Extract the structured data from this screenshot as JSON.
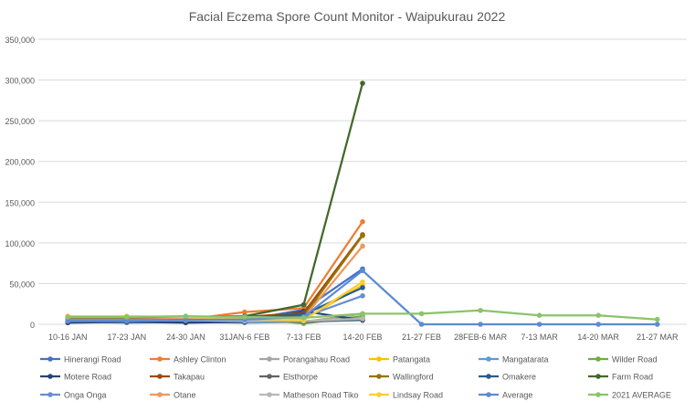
{
  "chart_data": {
    "type": "line",
    "title": "Facial Eczema Spore Count Monitor - Waipukurau 2022",
    "xlabel": "",
    "ylabel": "",
    "categories": [
      "10-16 JAN",
      "17-23 JAN",
      "24-30 JAN",
      "31JAN-6 FEB",
      "7-13 FEB",
      "14-20 FEB",
      "21-27 FEB",
      "28FEB-6 MAR",
      "7-13 MAR",
      "14-20 MAR",
      "21-27 MAR"
    ],
    "ylim": [
      0,
      350000
    ],
    "yticks": [
      0,
      50000,
      100000,
      150000,
      200000,
      250000,
      300000,
      350000
    ],
    "ytick_labels": [
      "0",
      "50,000",
      "100,000",
      "150,000",
      "200,000",
      "250,000",
      "300,000",
      "350,000"
    ],
    "grid": true,
    "legend_position": "bottom",
    "series": [
      {
        "name": "Hinerangi Road",
        "color": "#4472C4",
        "values": [
          4000,
          3000,
          3000,
          5000,
          18000,
          68000,
          null,
          null,
          null,
          null,
          null
        ]
      },
      {
        "name": "Ashley Clinton",
        "color": "#ED7D31",
        "values": [
          5000,
          5000,
          6000,
          15000,
          20000,
          126000,
          null,
          null,
          null,
          null,
          null
        ]
      },
      {
        "name": "Porangahau Road",
        "color": "#A5A5A5",
        "values": [
          3000,
          4000,
          4000,
          3000,
          3000,
          13000,
          null,
          null,
          null,
          null,
          null
        ]
      },
      {
        "name": "Patangata",
        "color": "#FFC000",
        "values": [
          6000,
          6000,
          5000,
          4000,
          6000,
          48000,
          null,
          null,
          null,
          null,
          null
        ]
      },
      {
        "name": "Mangatarata",
        "color": "#5B9BD5",
        "values": [
          3000,
          2000,
          3000,
          2000,
          3000,
          5000,
          null,
          null,
          null,
          null,
          null
        ]
      },
      {
        "name": "Wilder Road",
        "color": "#70AD47",
        "values": [
          7000,
          7000,
          9000,
          8000,
          1000,
          10000,
          null,
          null,
          null,
          null,
          null
        ]
      },
      {
        "name": "Motere Road",
        "color": "#264478",
        "values": [
          2000,
          3000,
          2000,
          3000,
          16000,
          5000,
          null,
          null,
          null,
          null,
          null
        ]
      },
      {
        "name": "Takapau",
        "color": "#9E480E",
        "values": [
          6000,
          7000,
          7000,
          9000,
          14000,
          110000,
          null,
          null,
          null,
          null,
          null
        ]
      },
      {
        "name": "Elsthorpe",
        "color": "#636363",
        "values": [
          5000,
          5000,
          5000,
          4000,
          3000,
          6000,
          null,
          null,
          null,
          null,
          null
        ]
      },
      {
        "name": "Wallingford",
        "color": "#997300",
        "values": [
          8000,
          8000,
          8000,
          9000,
          10000,
          109000,
          null,
          null,
          null,
          null,
          null
        ]
      },
      {
        "name": "Omakere",
        "color": "#255E91",
        "values": [
          5000,
          6000,
          6000,
          8000,
          12000,
          45000,
          null,
          null,
          null,
          null,
          null
        ]
      },
      {
        "name": "Farm Road",
        "color": "#43682B",
        "values": [
          7000,
          8000,
          9000,
          10000,
          24000,
          296000,
          null,
          null,
          null,
          null,
          null
        ]
      },
      {
        "name": "Onga Onga",
        "color": "#698ED0",
        "values": [
          4000,
          4000,
          5000,
          5000,
          9000,
          35000,
          null,
          null,
          null,
          null,
          null
        ]
      },
      {
        "name": "Otane",
        "color": "#F1975A",
        "values": [
          6000,
          6000,
          7000,
          7000,
          8000,
          96000,
          null,
          null,
          null,
          null,
          null
        ]
      },
      {
        "name": "Matheson Road Tiko",
        "color": "#B7B7B7",
        "values": [
          5000,
          5000,
          5000,
          4000,
          4000,
          7000,
          null,
          null,
          null,
          null,
          null
        ]
      },
      {
        "name": "Lindsay Road",
        "color": "#FFCD33",
        "values": [
          10000,
          10000,
          9000,
          7000,
          5000,
          52000,
          null,
          null,
          null,
          null,
          null
        ]
      },
      {
        "name": "Average",
        "color": "#5B8BD4",
        "values": [
          5000,
          5000,
          5500,
          6000,
          9000,
          66000,
          0,
          0,
          0,
          0,
          0
        ]
      },
      {
        "name": "2021 AVERAGE",
        "color": "#8BC36A",
        "values": [
          9000,
          9000,
          10000,
          9000,
          8000,
          13000,
          13000,
          17000,
          11000,
          11000,
          6000
        ]
      }
    ]
  }
}
